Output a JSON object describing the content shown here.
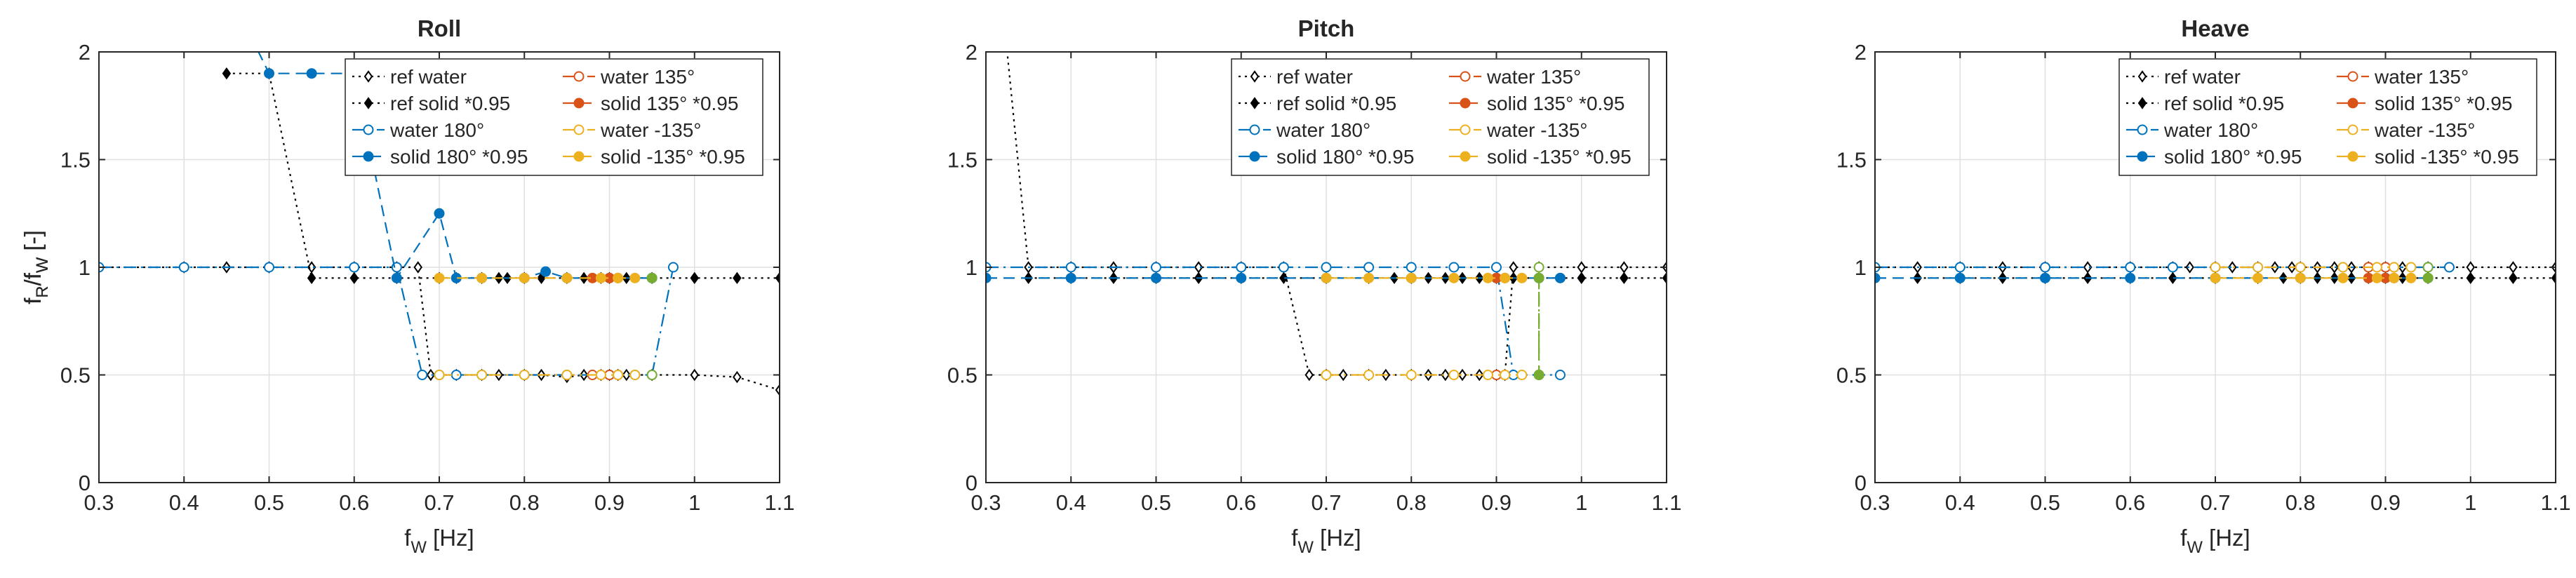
{
  "chart_data": [
    {
      "type": "line",
      "title": "Roll",
      "xlabel": "f_W [Hz]",
      "ylabel": "f_R/f_W [-]",
      "xlim": [
        0.3,
        1.1
      ],
      "ylim": [
        0,
        2
      ],
      "xticks": [
        0.3,
        0.4,
        0.5,
        0.6,
        0.7,
        0.8,
        0.9,
        1,
        1.1
      ],
      "yticks": [
        0,
        0.5,
        1,
        1.5,
        2
      ],
      "xtick_labels": [
        "0.3",
        "0.4",
        "0.5",
        "0.6",
        "0.7",
        "0.8",
        "0.9",
        "1",
        "1.1"
      ],
      "ytick_labels": [
        "0",
        "0.5",
        "1",
        "1.5",
        "2"
      ],
      "grid": true,
      "legend_position": "top-right",
      "series": [
        {
          "name": "ref water",
          "color": "#000000",
          "dash": "dotted",
          "marker": "diamond-open",
          "x": [
            0.3,
            0.4,
            0.45,
            0.5,
            0.55,
            0.6,
            0.65,
            0.675,
            0.69,
            0.72,
            0.75,
            0.77,
            0.8,
            0.82,
            0.85,
            0.87,
            0.89,
            0.9,
            0.91,
            0.92,
            0.95,
            1.0,
            1.05,
            1.1
          ],
          "y": [
            1.0,
            1.0,
            1.0,
            1.0,
            1.0,
            1.0,
            1.0,
            1.0,
            0.5,
            0.5,
            0.5,
            0.5,
            0.5,
            0.5,
            0.49,
            0.5,
            0.5,
            0.5,
            0.5,
            0.5,
            0.5,
            0.5,
            0.49,
            0.43
          ]
        },
        {
          "name": "ref solid *0.95",
          "color": "#000000",
          "dash": "dotted",
          "marker": "diamond-filled",
          "x": [
            0.45,
            0.5,
            0.55,
            0.6,
            0.65,
            0.7,
            0.72,
            0.75,
            0.77,
            0.78,
            0.8,
            0.82,
            0.85,
            0.87,
            0.89,
            0.9,
            0.92,
            0.95,
            1.0,
            1.05,
            1.1
          ],
          "y": [
            1.9,
            1.9,
            0.95,
            0.95,
            0.95,
            0.95,
            0.95,
            0.95,
            0.95,
            0.95,
            0.95,
            0.95,
            0.95,
            0.95,
            0.95,
            0.95,
            0.95,
            0.95,
            0.95,
            0.95,
            0.95
          ]
        },
        {
          "name": "water 180°",
          "color": "#0072BD",
          "dash": "dashdot",
          "marker": "circle-open",
          "x": [
            0.3,
            0.4,
            0.5,
            0.6,
            0.65,
            0.68,
            0.7,
            0.72,
            0.75,
            0.8,
            0.85,
            0.9,
            0.93,
            0.95,
            0.975
          ],
          "y": [
            1.0,
            1.0,
            1.0,
            1.0,
            1.0,
            0.5,
            0.5,
            0.5,
            0.5,
            0.5,
            0.5,
            0.5,
            0.5,
            0.5,
            1.0
          ]
        },
        {
          "name": "solid 180° *0.95",
          "color": "#0072BD",
          "dash": "dashed",
          "marker": "circle-filled",
          "x": [
            0.45,
            0.5,
            0.55,
            0.6,
            0.65,
            0.7,
            0.72,
            0.75,
            0.8,
            0.825,
            0.85,
            0.9,
            0.95
          ],
          "y": [
            2.3,
            1.9,
            1.9,
            1.9,
            0.95,
            1.25,
            0.95,
            0.95,
            0.95,
            0.98,
            0.95,
            0.95,
            0.95
          ]
        },
        {
          "name": "water 135°",
          "color": "#D95319",
          "dash": "dashdot",
          "marker": "circle-open",
          "x": [
            0.88,
            0.9,
            0.91
          ],
          "y": [
            0.5,
            0.5,
            0.5
          ]
        },
        {
          "name": "solid 135° *0.95",
          "color": "#D95319",
          "dash": "dashed",
          "marker": "circle-filled",
          "x": [
            0.88,
            0.9,
            0.91
          ],
          "y": [
            0.95,
            0.95,
            0.95
          ]
        },
        {
          "name": "water -135°",
          "color": "#EDB120",
          "dash": "dashdot",
          "marker": "circle-open",
          "x": [
            0.7,
            0.75,
            0.8,
            0.85,
            0.89,
            0.91,
            0.93
          ],
          "y": [
            0.5,
            0.5,
            0.5,
            0.5,
            0.5,
            0.5,
            0.5
          ]
        },
        {
          "name": "solid -135° *0.95",
          "color": "#EDB120",
          "dash": "dashed",
          "marker": "circle-filled",
          "x": [
            0.7,
            0.75,
            0.8,
            0.85,
            0.89,
            0.91,
            0.93
          ],
          "y": [
            0.95,
            0.95,
            0.95,
            0.95,
            0.95,
            0.95,
            0.95
          ]
        },
        {
          "color": "#77AC30",
          "dash": "dashdot",
          "marker": "circle-open",
          "legend": false,
          "x": [
            0.95
          ],
          "y": [
            0.5
          ]
        },
        {
          "color": "#77AC30",
          "dash": "dashed",
          "marker": "circle-filled",
          "legend": false,
          "x": [
            0.95
          ],
          "y": [
            0.95
          ]
        }
      ]
    },
    {
      "type": "line",
      "title": "Pitch",
      "xlabel": "f_W [Hz]",
      "ylabel": "f_R/f_W [-]",
      "xlim": [
        0.3,
        1.1
      ],
      "ylim": [
        0,
        2
      ],
      "xticks": [
        0.3,
        0.4,
        0.5,
        0.6,
        0.7,
        0.8,
        0.9,
        1,
        1.1
      ],
      "yticks": [
        0,
        0.5,
        1,
        1.5,
        2
      ],
      "xtick_labels": [
        "0.3",
        "0.4",
        "0.5",
        "0.6",
        "0.7",
        "0.8",
        "0.9",
        "1",
        "1.1"
      ],
      "ytick_labels": [
        "0",
        "0.5",
        "1",
        "1.5",
        "2"
      ],
      "grid": true,
      "legend_position": "top-right",
      "series": [
        {
          "name": "ref water",
          "color": "#000000",
          "dash": "dotted",
          "marker": "diamond-open",
          "x": [
            0.3,
            0.35,
            0.4,
            0.45,
            0.5,
            0.55,
            0.6,
            0.65,
            0.68,
            0.7,
            0.72,
            0.75,
            0.77,
            0.8,
            0.82,
            0.84,
            0.86,
            0.88,
            0.9,
            0.91,
            0.92,
            0.95,
            1.0,
            1.05,
            1.1
          ],
          "y": [
            3.0,
            1.0,
            1.0,
            1.0,
            1.0,
            1.0,
            1.0,
            1.0,
            0.5,
            0.5,
            0.5,
            0.5,
            0.5,
            0.5,
            0.5,
            0.5,
            0.5,
            0.5,
            0.5,
            0.5,
            1.0,
            1.0,
            1.0,
            1.0,
            1.0
          ]
        },
        {
          "name": "ref solid *0.95",
          "color": "#000000",
          "dash": "dotted",
          "marker": "diamond-filled",
          "x": [
            0.35,
            0.4,
            0.45,
            0.5,
            0.55,
            0.6,
            0.65,
            0.7,
            0.75,
            0.78,
            0.8,
            0.82,
            0.84,
            0.86,
            0.88,
            0.9,
            0.92,
            0.95,
            1.0,
            1.05,
            1.1
          ],
          "y": [
            0.95,
            0.95,
            0.95,
            0.95,
            0.95,
            0.95,
            0.95,
            0.95,
            0.95,
            0.95,
            0.95,
            0.95,
            0.95,
            0.95,
            0.95,
            0.95,
            0.95,
            0.95,
            0.95,
            0.95,
            0.95
          ]
        },
        {
          "name": "water 180°",
          "color": "#0072BD",
          "dash": "dashdot",
          "marker": "circle-open",
          "x": [
            0.3,
            0.4,
            0.5,
            0.6,
            0.65,
            0.7,
            0.75,
            0.8,
            0.85,
            0.9,
            0.92,
            0.95,
            0.975
          ],
          "y": [
            1.0,
            1.0,
            1.0,
            1.0,
            1.0,
            1.0,
            1.0,
            1.0,
            1.0,
            1.0,
            0.5,
            0.5,
            0.5
          ]
        },
        {
          "name": "solid 180° *0.95",
          "color": "#0072BD",
          "dash": "dashed",
          "marker": "circle-filled",
          "x": [
            0.3,
            0.4,
            0.5,
            0.6,
            0.7,
            0.8,
            0.9,
            0.95,
            0.975
          ],
          "y": [
            0.95,
            0.95,
            0.95,
            0.95,
            0.95,
            0.95,
            0.95,
            0.95,
            0.95
          ]
        },
        {
          "name": "water 135°",
          "color": "#D95319",
          "dash": "dashdot",
          "marker": "circle-open",
          "x": [
            0.9,
            0.91
          ],
          "y": [
            0.5,
            0.5
          ]
        },
        {
          "name": "solid 135° *0.95",
          "color": "#D95319",
          "dash": "dashed",
          "marker": "circle-filled",
          "x": [
            0.9,
            0.91
          ],
          "y": [
            0.95,
            0.95
          ]
        },
        {
          "name": "water -135°",
          "color": "#EDB120",
          "dash": "dashdot",
          "marker": "circle-open",
          "x": [
            0.7,
            0.75,
            0.8,
            0.85,
            0.89,
            0.91,
            0.93
          ],
          "y": [
            0.5,
            0.5,
            0.5,
            0.5,
            0.5,
            0.5,
            0.5
          ]
        },
        {
          "name": "solid -135° *0.95",
          "color": "#EDB120",
          "dash": "dashed",
          "marker": "circle-filled",
          "x": [
            0.7,
            0.75,
            0.8,
            0.85,
            0.89,
            0.91,
            0.93
          ],
          "y": [
            0.95,
            0.95,
            0.95,
            0.95,
            0.95,
            0.95,
            0.95
          ]
        },
        {
          "color": "#77AC30",
          "dash": "dashdot",
          "marker": "circle-open",
          "legend": false,
          "x": [
            0.95,
            0.95
          ],
          "y": [
            1.0,
            0.5
          ]
        },
        {
          "color": "#77AC30",
          "dash": "dashed",
          "marker": "circle-filled",
          "legend": false,
          "x": [
            0.95,
            0.95
          ],
          "y": [
            0.95,
            0.5
          ]
        }
      ]
    },
    {
      "type": "line",
      "title": "Heave",
      "xlabel": "f_W [Hz]",
      "ylabel": "f_R/f_W [-]",
      "xlim": [
        0.3,
        1.1
      ],
      "ylim": [
        0,
        2
      ],
      "xticks": [
        0.3,
        0.4,
        0.5,
        0.6,
        0.7,
        0.8,
        0.9,
        1,
        1.1
      ],
      "yticks": [
        0,
        0.5,
        1,
        1.5,
        2
      ],
      "xtick_labels": [
        "0.3",
        "0.4",
        "0.5",
        "0.6",
        "0.7",
        "0.8",
        "0.9",
        "1",
        "1.1"
      ],
      "ytick_labels": [
        "0",
        "0.5",
        "1",
        "1.5",
        "2"
      ],
      "grid": true,
      "legend_position": "top-right",
      "series": [
        {
          "name": "ref water",
          "color": "#000000",
          "dash": "dotted",
          "marker": "diamond-open",
          "x": [
            0.3,
            0.35,
            0.4,
            0.45,
            0.5,
            0.55,
            0.6,
            0.65,
            0.67,
            0.7,
            0.72,
            0.75,
            0.77,
            0.79,
            0.8,
            0.82,
            0.84,
            0.86,
            0.88,
            0.9,
            0.92,
            0.95,
            1.0,
            1.05,
            1.1
          ],
          "y": [
            1.0,
            1.0,
            1.0,
            1.0,
            1.0,
            1.0,
            1.0,
            1.0,
            1.0,
            1.0,
            1.0,
            1.0,
            1.0,
            1.0,
            1.0,
            1.0,
            1.0,
            1.0,
            1.0,
            1.0,
            1.0,
            1.0,
            1.0,
            1.0,
            1.0
          ]
        },
        {
          "name": "ref solid *0.95",
          "color": "#000000",
          "dash": "dotted",
          "marker": "diamond-filled",
          "x": [
            0.35,
            0.4,
            0.45,
            0.5,
            0.55,
            0.6,
            0.65,
            0.7,
            0.75,
            0.78,
            0.8,
            0.82,
            0.84,
            0.86,
            0.88,
            0.9,
            0.92,
            0.95,
            1.0,
            1.05,
            1.1
          ],
          "y": [
            0.95,
            0.95,
            0.95,
            0.95,
            0.95,
            0.95,
            0.95,
            0.95,
            0.95,
            0.95,
            0.95,
            0.95,
            0.95,
            0.95,
            0.95,
            0.95,
            0.95,
            0.95,
            0.95,
            0.95,
            0.95
          ]
        },
        {
          "name": "water 180°",
          "color": "#0072BD",
          "dash": "dashdot",
          "marker": "circle-open",
          "x": [
            0.3,
            0.4,
            0.5,
            0.6,
            0.65,
            0.7,
            0.75,
            0.8,
            0.85,
            0.9,
            0.95,
            0.975
          ],
          "y": [
            1.0,
            1.0,
            1.0,
            1.0,
            1.0,
            1.0,
            1.0,
            1.0,
            1.0,
            1.0,
            1.0,
            1.0
          ]
        },
        {
          "name": "solid 180° *0.95",
          "color": "#0072BD",
          "dash": "dashed",
          "marker": "circle-filled",
          "x": [
            0.3,
            0.4,
            0.5,
            0.6,
            0.7,
            0.8,
            0.9,
            0.95
          ],
          "y": [
            0.95,
            0.95,
            0.95,
            0.95,
            0.95,
            0.95,
            0.95,
            0.95
          ]
        },
        {
          "name": "water 135°",
          "color": "#D95319",
          "dash": "dashdot",
          "marker": "circle-open",
          "x": [
            0.88,
            0.9,
            0.91
          ],
          "y": [
            1.0,
            1.0,
            1.0
          ]
        },
        {
          "name": "solid 135° *0.95",
          "color": "#D95319",
          "dash": "dashed",
          "marker": "circle-filled",
          "x": [
            0.88,
            0.9,
            0.91
          ],
          "y": [
            0.95,
            0.95,
            0.95
          ]
        },
        {
          "name": "water -135°",
          "color": "#EDB120",
          "dash": "dashdot",
          "marker": "circle-open",
          "x": [
            0.7,
            0.75,
            0.8,
            0.85,
            0.89,
            0.91,
            0.93
          ],
          "y": [
            1.0,
            1.0,
            1.0,
            1.0,
            1.0,
            1.0,
            1.0
          ]
        },
        {
          "name": "solid -135° *0.95",
          "color": "#EDB120",
          "dash": "dashed",
          "marker": "circle-filled",
          "x": [
            0.7,
            0.75,
            0.8,
            0.85,
            0.89,
            0.91,
            0.93
          ],
          "y": [
            0.95,
            0.95,
            0.95,
            0.95,
            0.95,
            0.95,
            0.95
          ]
        },
        {
          "color": "#77AC30",
          "dash": "dashdot",
          "marker": "circle-open",
          "legend": false,
          "x": [
            0.95
          ],
          "y": [
            1.0
          ]
        },
        {
          "color": "#77AC30",
          "dash": "dashed",
          "marker": "circle-filled",
          "legend": false,
          "x": [
            0.95
          ],
          "y": [
            0.95
          ]
        }
      ]
    }
  ]
}
